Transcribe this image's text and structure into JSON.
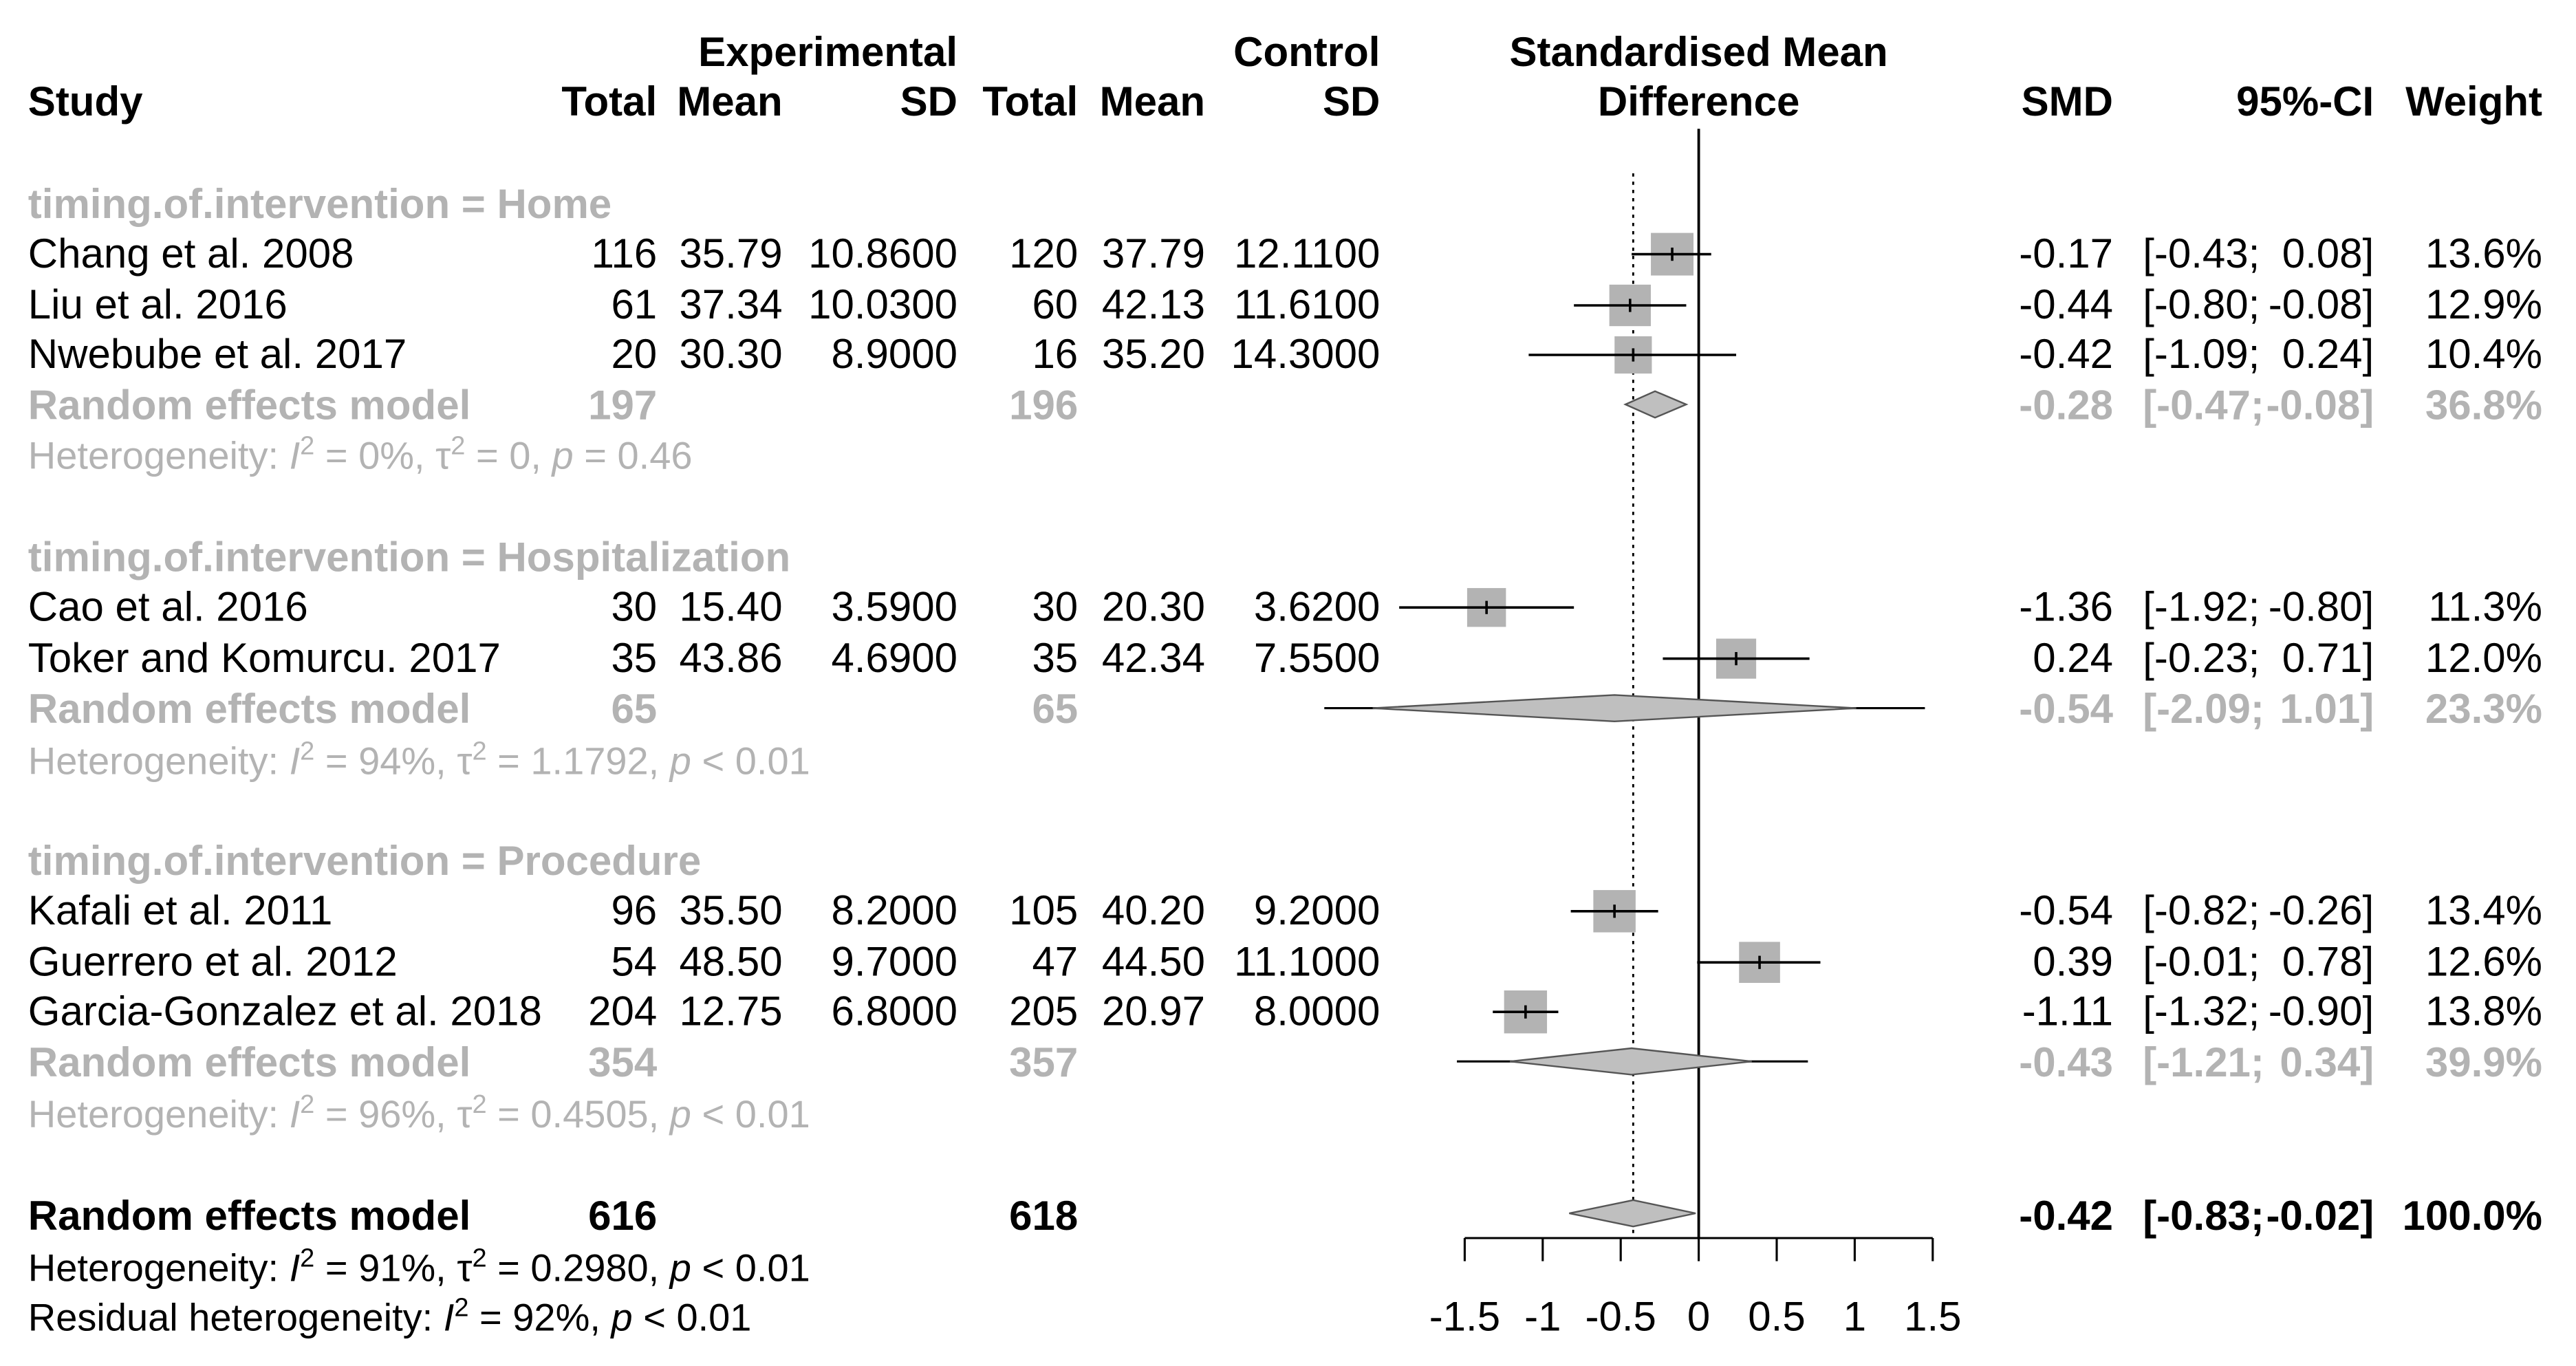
{
  "chart_data": {
    "type": "forest",
    "headers": {
      "study": "Study",
      "experimental": "Experimental",
      "control": "Control",
      "total": "Total",
      "mean": "Mean",
      "sd": "SD",
      "effect_line1": "Standardised Mean",
      "effect_line2": "Difference",
      "smd": "SMD",
      "ci": "95%-CI",
      "weight": "Weight"
    },
    "groups": [
      {
        "label": "timing.of.intervention = Home",
        "studies": [
          {
            "name": "Chang et al. 2008",
            "e_total": "116",
            "e_mean": "35.79",
            "e_sd": "10.8600",
            "c_total": "120",
            "c_mean": "37.79",
            "c_sd": "12.1100",
            "smd_text": "-0.17",
            "ci_lower_text": "[-0.43;",
            "ci_upper_text": "0.08]",
            "weight_text": "13.6%",
            "smd": -0.17,
            "lower": -0.43,
            "upper": 0.08,
            "weight": 13.6
          },
          {
            "name": "Liu et al. 2016",
            "e_total": "61",
            "e_mean": "37.34",
            "e_sd": "10.0300",
            "c_total": "60",
            "c_mean": "42.13",
            "c_sd": "11.6100",
            "smd_text": "-0.44",
            "ci_lower_text": "[-0.80;",
            "ci_upper_text": "-0.08]",
            "weight_text": "12.9%",
            "smd": -0.44,
            "lower": -0.8,
            "upper": -0.08,
            "weight": 12.9
          },
          {
            "name": "Nwebube et al. 2017",
            "e_total": "20",
            "e_mean": "30.30",
            "e_sd": "8.9000",
            "c_total": "16",
            "c_mean": "35.20",
            "c_sd": "14.3000",
            "smd_text": "-0.42",
            "ci_lower_text": "[-1.09;",
            "ci_upper_text": "0.24]",
            "weight_text": "10.4%",
            "smd": -0.42,
            "lower": -1.09,
            "upper": 0.24,
            "weight": 10.4
          }
        ],
        "pooled": {
          "label": "Random effects model",
          "e_total": "197",
          "c_total": "196",
          "smd_text": "-0.28",
          "ci_lower_text": "[-0.47;",
          "ci_upper_text": "-0.08]",
          "weight_text": "36.8%",
          "smd": -0.28,
          "lower": -0.47,
          "upper": -0.08,
          "pred_lower": null,
          "pred_upper": null
        },
        "heterogeneity": {
          "prefix": "Heterogeneity: ",
          "i2_label": "I",
          "i2_value": " = 0%, ",
          "tau_label": "τ",
          "tau_value": " = 0, ",
          "p_label": "p",
          "p_value": " = 0.46"
        }
      },
      {
        "label": "timing.of.intervention = Hospitalization",
        "studies": [
          {
            "name": "Cao et al. 2016",
            "e_total": "30",
            "e_mean": "15.40",
            "e_sd": "3.5900",
            "c_total": "30",
            "c_mean": "20.30",
            "c_sd": "3.6200",
            "smd_text": "-1.36",
            "ci_lower_text": "[-1.92;",
            "ci_upper_text": "-0.80]",
            "weight_text": "11.3%",
            "smd": -1.36,
            "lower": -1.92,
            "upper": -0.8,
            "weight": 11.3
          },
          {
            "name": "Toker and Komurcu. 2017",
            "e_total": "35",
            "e_mean": "43.86",
            "e_sd": "4.6900",
            "c_total": "35",
            "c_mean": "42.34",
            "c_sd": "7.5500",
            "smd_text": "0.24",
            "ci_lower_text": "[-0.23;",
            "ci_upper_text": "0.71]",
            "weight_text": "12.0%",
            "smd": 0.24,
            "lower": -0.23,
            "upper": 0.71,
            "weight": 12.0
          }
        ],
        "pooled": {
          "label": "Random effects model",
          "e_total": "65",
          "c_total": "65",
          "smd_text": "-0.54",
          "ci_lower_text": "[-2.09;",
          "ci_upper_text": "1.01]",
          "weight_text": "23.3%",
          "smd": -0.54,
          "lower": -2.09,
          "upper": 1.01,
          "pred_lower": -2.4,
          "pred_upper": 1.45
        },
        "heterogeneity": {
          "prefix": "Heterogeneity: ",
          "i2_label": "I",
          "i2_value": " = 94%, ",
          "tau_label": "τ",
          "tau_value": " = 1.1792, ",
          "p_label": "p",
          "p_value": " < 0.01"
        }
      },
      {
        "label": "timing.of.intervention = Procedure",
        "studies": [
          {
            "name": "Kafali et al. 2011",
            "e_total": "96",
            "e_mean": "35.50",
            "e_sd": "8.2000",
            "c_total": "105",
            "c_mean": "40.20",
            "c_sd": "9.2000",
            "smd_text": "-0.54",
            "ci_lower_text": "[-0.82;",
            "ci_upper_text": "-0.26]",
            "weight_text": "13.4%",
            "smd": -0.54,
            "lower": -0.82,
            "upper": -0.26,
            "weight": 13.4
          },
          {
            "name": "Guerrero et al. 2012",
            "e_total": "54",
            "e_mean": "48.50",
            "e_sd": "9.7000",
            "c_total": "47",
            "c_mean": "44.50",
            "c_sd": "11.1000",
            "smd_text": "0.39",
            "ci_lower_text": "[-0.01;",
            "ci_upper_text": "0.78]",
            "weight_text": "12.6%",
            "smd": 0.39,
            "lower": -0.01,
            "upper": 0.78,
            "weight": 12.6
          },
          {
            "name": "Garcia-Gonzalez et al. 2018",
            "e_total": "204",
            "e_mean": "12.75",
            "e_sd": "6.8000",
            "c_total": "205",
            "c_mean": "20.97",
            "c_sd": "8.0000",
            "smd_text": "-1.11",
            "ci_lower_text": "[-1.32;",
            "ci_upper_text": "-0.90]",
            "weight_text": "13.8%",
            "smd": -1.11,
            "lower": -1.32,
            "upper": -0.9,
            "weight": 13.8
          }
        ],
        "pooled": {
          "label": "Random effects model",
          "e_total": "354",
          "c_total": "357",
          "smd_text": "-0.43",
          "ci_lower_text": "[-1.21;",
          "ci_upper_text": "0.34]",
          "weight_text": "39.9%",
          "smd": -0.43,
          "lower": -1.21,
          "upper": 0.34,
          "pred_lower": -1.55,
          "pred_upper": 0.7
        },
        "heterogeneity": {
          "prefix": "Heterogeneity: ",
          "i2_label": "I",
          "i2_value": " = 96%, ",
          "tau_label": "τ",
          "tau_value": " = 0.4505, ",
          "p_label": "p",
          "p_value": " < 0.01"
        }
      }
    ],
    "overall": {
      "label": "Random effects model",
      "e_total": "616",
      "c_total": "618",
      "smd_text": "-0.42",
      "ci_lower_text": "[-0.83;",
      "ci_upper_text": "-0.02]",
      "weight_text": "100.0%",
      "smd": -0.42,
      "lower": -0.83,
      "upper": -0.02
    },
    "overall_heterogeneity": {
      "prefix": "Heterogeneity: ",
      "i2_label": "I",
      "i2_value": " = 91%, ",
      "tau_label": "τ",
      "tau_value": " = 0.2980, ",
      "p_label": "p",
      "p_value": " < 0.01"
    },
    "residual_heterogeneity": {
      "prefix": "Residual heterogeneity: ",
      "i2_label": "I",
      "i2_value": " = 92%, ",
      "p_label": "p",
      "p_value": " < 0.01"
    },
    "x_axis": {
      "ticks": [
        -1.5,
        -1,
        -0.5,
        0,
        0.5,
        1,
        1.5
      ],
      "tick_labels": [
        "-1.5",
        "-1",
        "-0.5",
        "0",
        "0.5",
        "1",
        "1.5"
      ],
      "xlim": [
        -1.5,
        1.5
      ]
    },
    "reference_line": 0,
    "overall_effect_line": -0.42
  }
}
